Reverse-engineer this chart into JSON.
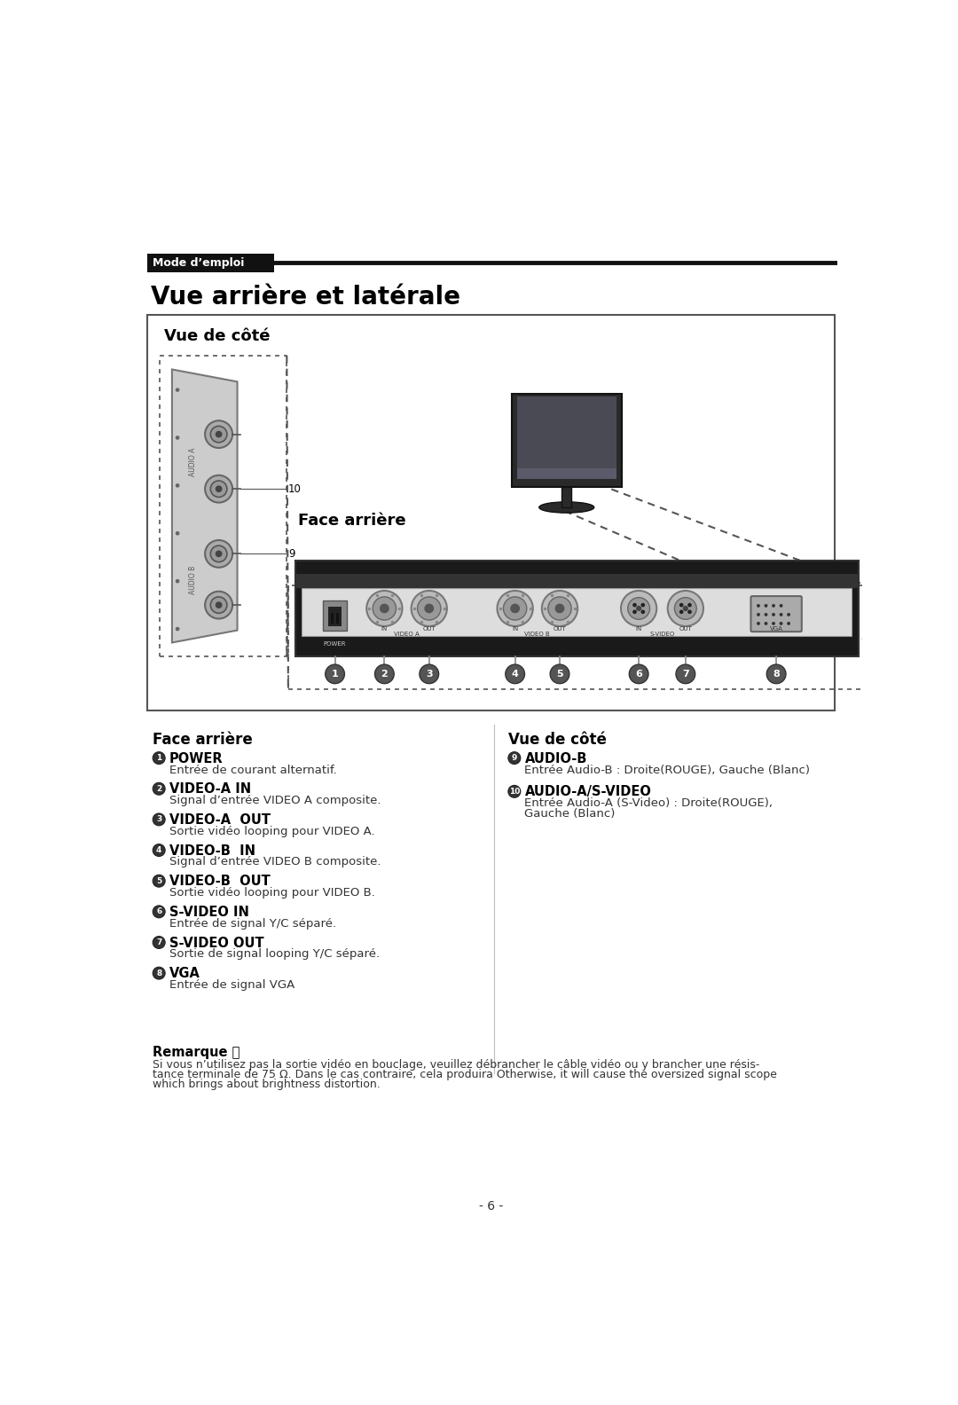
{
  "page_title": "Vue arrière et latérale",
  "header_label": "Mode d’emploi",
  "diagram_title_left": "Vue de côté",
  "diagram_title_right": "Face arrière",
  "section_left_title": "Face arrière",
  "section_right_title": "Vue de côté",
  "left_items": [
    {
      "num": "1",
      "label": "POWER",
      "desc": "Entrée de courant alternatif."
    },
    {
      "num": "2",
      "label": "VIDEO-A IN",
      "desc": "Signal d’entrée VIDEO A composite."
    },
    {
      "num": "3",
      "label": "VIDEO-A  OUT",
      "desc": "Sortie vidéo looping pour VIDEO A."
    },
    {
      "num": "4",
      "label": "VIDEO-B  IN",
      "desc": "Signal d’entrée VIDEO B composite."
    },
    {
      "num": "5",
      "label": "VIDEO-B  OUT",
      "desc": "Sortie vidéo looping pour VIDEO B."
    },
    {
      "num": "6",
      "label": "S-VIDEO IN",
      "desc": "Entrée de signal Y/C séparé."
    },
    {
      "num": "7",
      "label": "S-VIDEO OUT",
      "desc": "Sortie de signal looping Y/C séparé."
    },
    {
      "num": "8",
      "label": "VGA",
      "desc": "Entrée de signal VGA"
    }
  ],
  "right_items": [
    {
      "num": "9",
      "label": "AUDIO-B",
      "desc": "Entrée Audio-B : Droite(ROUGE), Gauche (Blanc)"
    },
    {
      "num": "10",
      "label": "AUDIO-A/S-VIDEO",
      "desc": "Entrée Audio-A (S-Video) : Droite(ROUGE),\nGauche (Blanc)"
    }
  ],
  "remark_title": "Remarque ：",
  "remark_lines": [
    "Si vous n’utilisez pas la sortie vidéo en bouclage, veuillez débrancher le câble vidéo ou y brancher une résis-",
    "tance terminale de 75 Ω. Dans le cas contraire, cela produira Otherwise, it will cause the oversized signal scope",
    "which brings about brightness distortion."
  ],
  "page_number": "- 6 -",
  "bg_color": "#ffffff",
  "header_bg": "#111111",
  "header_text_color": "#ffffff",
  "header_line_color": "#111111"
}
